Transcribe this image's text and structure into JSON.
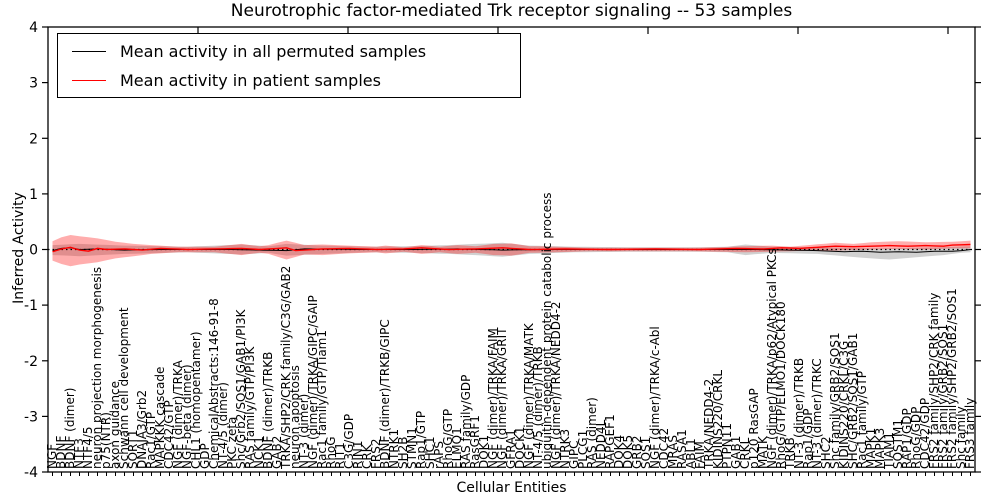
{
  "figure": {
    "title": "Neurotrophic factor-mediated Trk receptor signaling -- 53 samples",
    "xlabel": "Cellular Entities",
    "ylabel": "Inferred Activity",
    "legend": [
      {
        "label": "Mean activity in all permuted samples",
        "color": "#000000"
      },
      {
        "label": "Mean activity in patient samples",
        "color": "#ff0000"
      }
    ]
  },
  "chart_data": {
    "type": "line",
    "title": "Neurotrophic factor-mediated Trk receptor signaling -- 53 samples",
    "xlabel": "Cellular Entities",
    "ylabel": "Inferred Activity",
    "ylim": [
      -4,
      4
    ],
    "yticks": [
      -4,
      -3,
      -2,
      -1,
      0,
      1,
      2,
      3,
      4
    ],
    "n_samples": 53,
    "grid": false,
    "legend_position": "upper left",
    "zero_line": {
      "style": "dotted",
      "color": "#000000",
      "y": 0
    },
    "categories": [
      "NGF",
      "BDNF",
      "BDNF (dimer)",
      "NTF3",
      "NTF4/5",
      "neuron projection morphogenesis",
      "p75(NTR)",
      "axon guidance",
      "Schwann cell development",
      "SORT1",
      "DNAJA3/Grb2",
      "Rac1/GTP",
      "MAPKKK cascade",
      "CDC42/GTP",
      "NGF (dimer)/TRKA",
      "NGF-beta (dimer)",
      "CHL1 (homopentamer)",
      "GDP",
      "ChemicalAbstracts:146-91-8",
      "NT-4/5 (dimer)",
      "PKC zeta",
      "Shc/Grb2/SOS1/GAB1/PI3K",
      "RAS family/GTP/PI3K",
      "NCK1",
      "BDNF (dimer)/TRKB",
      "GAB2",
      "TRKA/SHP2/CRK family/C3G/GAB2",
      "neuron apoptosis",
      "NT-3 (dimer)",
      "NGF (dimer)/TRKA/GIPC/GAIP",
      "Rac1 family/GTP/Tiam1",
      "RhoG",
      "RIT1",
      "C3G/GDP",
      "RIN1",
      "CRK",
      "FRS2",
      "BDNF (dimer)/TRKB/GIPC",
      "NTRK1",
      "SH2B",
      "STMN1",
      "Rap1/GTP",
      "SHC1",
      "rAPS",
      "RhoG/GTP",
      "ELMO1",
      "RAS family/GDP",
      "RasGRF1",
      "DOK1",
      "NGF (dimer)/TRKA/FAIM",
      "NGF (dimer)/TRKA/GRIT",
      "GFRA1",
      "DOCK1",
      "NGF (dimer)/TRKA/MATK",
      "NT-4/5 (dimer)/TRKB",
      "ubiquitin-dependent protein catabolic process",
      "NGF (dimer)/TRKA/NEDD4-2",
      "NTRK3",
      "GIPC",
      "PLCG1",
      "RAS (dimer)",
      "NEDD4L",
      "RAPGEF1",
      "DOK4",
      "DOK5",
      "GRB2",
      "SOS1",
      "NGF (dimer)/TRKA/c-Abl",
      "CDC42",
      "MRAS",
      "RASA1",
      "ABL1",
      "FAIM",
      "TRKA/NEDD4-2",
      "KIDINS220/CRKL",
      "PTPN11",
      "GAB1",
      "CRKL",
      "p120 RasGAP",
      "MATK",
      "NGF (dimer)/TRKA/p62/Atypical PKCs",
      "RhoG/GTP/ELMO1/DOCK180",
      "TRKB",
      "NT-3 (dimer)/TRKB",
      "Rap1/GDP",
      "NT-3 (dimer)/TRKC",
      "SHC2",
      "Shc family/GRB2/SOS1",
      "KIDINS220/CRKL/C3G",
      "SHC/GRB2/SOS1/GAB1",
      "Rac1 family/GTP",
      "MAPK1",
      "MAPK3",
      "TIAM1",
      "SQSTM1",
      "RAP1/GDP",
      "RhoG/GDP",
      "CDC42/GDP",
      "FRS2 family/SHP2/CRK family",
      "FRS2 family/GRB2/SOS1",
      "FRS2 family/SHP2/GRB2/SOS1",
      "Shc family",
      "FRS3 family"
    ],
    "series": [
      {
        "name": "Mean activity in all permuted samples",
        "type": "line",
        "color": "#000000",
        "width": 1.0,
        "points": [
          [
            0,
            -0.02
          ],
          [
            1,
            0.02
          ],
          [
            2,
            0.03
          ],
          [
            3,
            0.0
          ],
          [
            5,
            0.01
          ],
          [
            8,
            -0.01
          ],
          [
            12,
            0.0
          ],
          [
            20,
            0.0
          ],
          [
            26,
            -0.02
          ],
          [
            28,
            0.01
          ],
          [
            34,
            0.0
          ],
          [
            40,
            0.0
          ],
          [
            45,
            0.01
          ],
          [
            50,
            -0.01
          ],
          [
            55,
            0.0
          ],
          [
            62,
            0.0
          ],
          [
            70,
            0.0
          ],
          [
            78,
            0.0
          ],
          [
            82,
            -0.01
          ],
          [
            85,
            -0.02
          ],
          [
            88,
            -0.04
          ],
          [
            90,
            -0.03
          ],
          [
            92,
            -0.05
          ],
          [
            94,
            -0.04
          ],
          [
            96,
            -0.05
          ],
          [
            98,
            -0.03
          ],
          [
            100,
            -0.03
          ],
          [
            101,
            -0.02
          ],
          [
            102,
            0.0
          ]
        ]
      },
      {
        "name": "Mean activity in patient samples",
        "type": "line",
        "color": "#ff0000",
        "width": 1.4,
        "points": [
          [
            0,
            -0.04
          ],
          [
            1,
            0.01
          ],
          [
            2,
            0.04
          ],
          [
            3,
            -0.01
          ],
          [
            4,
            -0.03
          ],
          [
            5,
            0.02
          ],
          [
            6,
            0.0
          ],
          [
            8,
            0.01
          ],
          [
            10,
            -0.01
          ],
          [
            12,
            0.02
          ],
          [
            15,
            0.0
          ],
          [
            18,
            0.01
          ],
          [
            21,
            0.02
          ],
          [
            23,
            0.0
          ],
          [
            26,
            0.03
          ],
          [
            27,
            -0.02
          ],
          [
            30,
            0.01
          ],
          [
            33,
            0.02
          ],
          [
            36,
            0.0
          ],
          [
            39,
            0.01
          ],
          [
            41,
            0.03
          ],
          [
            44,
            0.0
          ],
          [
            47,
            0.01
          ],
          [
            50,
            0.03
          ],
          [
            53,
            0.0
          ],
          [
            57,
            0.01
          ],
          [
            62,
            0.0
          ],
          [
            67,
            0.01
          ],
          [
            72,
            0.0
          ],
          [
            76,
            0.02
          ],
          [
            79,
            0.01
          ],
          [
            81,
            0.03
          ],
          [
            83,
            0.02
          ],
          [
            85,
            0.04
          ],
          [
            87,
            0.06
          ],
          [
            89,
            0.05
          ],
          [
            91,
            0.06
          ],
          [
            93,
            0.07
          ],
          [
            95,
            0.06
          ],
          [
            97,
            0.07
          ],
          [
            99,
            0.06
          ],
          [
            100,
            0.08
          ],
          [
            102,
            0.09
          ]
        ]
      },
      {
        "name": "Permuted band",
        "type": "band",
        "color": "#999999",
        "opacity": 0.45,
        "upper": [
          [
            0,
            0.08
          ],
          [
            3,
            0.1
          ],
          [
            8,
            0.07
          ],
          [
            15,
            0.05
          ],
          [
            21,
            0.09
          ],
          [
            24,
            0.06
          ],
          [
            26,
            0.1
          ],
          [
            30,
            0.07
          ],
          [
            35,
            0.05
          ],
          [
            40,
            0.06
          ],
          [
            44,
            0.08
          ],
          [
            47,
            0.1
          ],
          [
            50,
            0.12
          ],
          [
            53,
            0.07
          ],
          [
            58,
            0.05
          ],
          [
            65,
            0.04
          ],
          [
            72,
            0.04
          ],
          [
            75,
            0.05
          ],
          [
            77,
            0.09
          ],
          [
            80,
            0.05
          ],
          [
            85,
            0.04
          ],
          [
            88,
            0.03
          ],
          [
            92,
            0.02
          ],
          [
            96,
            0.03
          ],
          [
            99,
            0.04
          ],
          [
            102,
            0.06
          ]
        ],
        "lower": [
          [
            0,
            -0.1
          ],
          [
            3,
            -0.12
          ],
          [
            8,
            -0.08
          ],
          [
            15,
            -0.05
          ],
          [
            21,
            -0.09
          ],
          [
            24,
            -0.06
          ],
          [
            26,
            -0.11
          ],
          [
            30,
            -0.08
          ],
          [
            35,
            -0.05
          ],
          [
            40,
            -0.06
          ],
          [
            44,
            -0.08
          ],
          [
            47,
            -0.1
          ],
          [
            50,
            -0.13
          ],
          [
            53,
            -0.08
          ],
          [
            58,
            -0.05
          ],
          [
            65,
            -0.04
          ],
          [
            72,
            -0.04
          ],
          [
            75,
            -0.05
          ],
          [
            77,
            -0.1
          ],
          [
            80,
            -0.06
          ],
          [
            85,
            -0.08
          ],
          [
            88,
            -0.12
          ],
          [
            90,
            -0.15
          ],
          [
            93,
            -0.18
          ],
          [
            96,
            -0.14
          ],
          [
            99,
            -0.1
          ],
          [
            101,
            -0.06
          ],
          [
            102,
            -0.05
          ]
        ]
      },
      {
        "name": "Patient band",
        "type": "band",
        "color": "#ff0000",
        "opacity": 0.32,
        "upper": [
          [
            0,
            0.15
          ],
          [
            1,
            0.22
          ],
          [
            2,
            0.26
          ],
          [
            3,
            0.24
          ],
          [
            5,
            0.2
          ],
          [
            7,
            0.14
          ],
          [
            9,
            0.1
          ],
          [
            11,
            0.08
          ],
          [
            14,
            0.05
          ],
          [
            18,
            0.05
          ],
          [
            21,
            0.1
          ],
          [
            23,
            0.06
          ],
          [
            24,
            0.08
          ],
          [
            26,
            0.16
          ],
          [
            28,
            0.08
          ],
          [
            30,
            0.09
          ],
          [
            33,
            0.07
          ],
          [
            36,
            0.05
          ],
          [
            37,
            0.07
          ],
          [
            39,
            0.04
          ],
          [
            41,
            0.08
          ],
          [
            43,
            0.05
          ],
          [
            45,
            0.08
          ],
          [
            47,
            0.06
          ],
          [
            49,
            0.1
          ],
          [
            51,
            0.11
          ],
          [
            53,
            0.06
          ],
          [
            56,
            0.05
          ],
          [
            60,
            0.03
          ],
          [
            65,
            0.03
          ],
          [
            70,
            0.03
          ],
          [
            74,
            0.04
          ],
          [
            77,
            0.06
          ],
          [
            80,
            0.07
          ],
          [
            82,
            0.05
          ],
          [
            84,
            0.08
          ],
          [
            87,
            0.12
          ],
          [
            89,
            0.1
          ],
          [
            91,
            0.13
          ],
          [
            94,
            0.15
          ],
          [
            97,
            0.13
          ],
          [
            100,
            0.14
          ],
          [
            102,
            0.16
          ]
        ],
        "lower": [
          [
            0,
            -0.2
          ],
          [
            1,
            -0.26
          ],
          [
            2,
            -0.3
          ],
          [
            3,
            -0.27
          ],
          [
            5,
            -0.23
          ],
          [
            7,
            -0.16
          ],
          [
            9,
            -0.12
          ],
          [
            11,
            -0.08
          ],
          [
            14,
            -0.05
          ],
          [
            18,
            -0.05
          ],
          [
            21,
            -0.1
          ],
          [
            23,
            -0.06
          ],
          [
            24,
            -0.08
          ],
          [
            26,
            -0.18
          ],
          [
            28,
            -0.09
          ],
          [
            30,
            -0.1
          ],
          [
            33,
            -0.07
          ],
          [
            36,
            -0.05
          ],
          [
            37,
            -0.07
          ],
          [
            39,
            -0.04
          ],
          [
            41,
            -0.08
          ],
          [
            43,
            -0.05
          ],
          [
            45,
            -0.08
          ],
          [
            47,
            -0.06
          ],
          [
            49,
            -0.1
          ],
          [
            51,
            -0.11
          ],
          [
            53,
            -0.06
          ],
          [
            56,
            -0.05
          ],
          [
            60,
            -0.03
          ],
          [
            65,
            -0.03
          ],
          [
            70,
            -0.03
          ],
          [
            74,
            -0.04
          ],
          [
            77,
            -0.05
          ],
          [
            80,
            -0.04
          ],
          [
            82,
            -0.03
          ],
          [
            84,
            -0.02
          ],
          [
            87,
            -0.02
          ],
          [
            89,
            -0.01
          ],
          [
            91,
            0.0
          ],
          [
            94,
            0.01
          ],
          [
            97,
            0.0
          ],
          [
            100,
            0.02
          ],
          [
            102,
            0.02
          ]
        ]
      }
    ]
  }
}
